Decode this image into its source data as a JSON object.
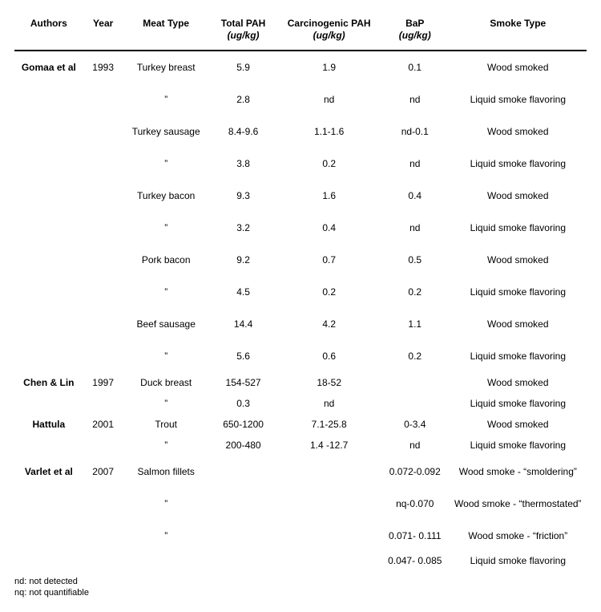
{
  "columns": {
    "authors": "Authors",
    "year": "Year",
    "meat": "Meat Type",
    "total": "Total PAH",
    "carc": "Carcinogenic PAH",
    "bap": "BaP",
    "smoke": "Smoke Type",
    "unit_total": "(ug/kg)",
    "unit_carc": "(ug/kg)",
    "unit_bap": "(ug/kg)"
  },
  "rows": [
    {
      "authors": "Gomaa et al",
      "year": "1993",
      "meat": "Turkey breast",
      "total": "5.9",
      "carc": "1.9",
      "bap": "0.1",
      "smoke": "Wood smoked",
      "cls": "loose"
    },
    {
      "authors": "",
      "year": "",
      "meat": "”",
      "total": "2.8",
      "carc": "nd",
      "bap": "nd",
      "smoke": "Liquid smoke flavoring",
      "cls": "loose"
    },
    {
      "authors": "",
      "year": "",
      "meat": "Turkey sausage",
      "total": "8.4-9.6",
      "carc": "1.1-1.6",
      "bap": "nd-0.1",
      "smoke": "Wood smoked",
      "cls": "loose"
    },
    {
      "authors": "",
      "year": "",
      "meat": "”",
      "total": "3.8",
      "carc": "0.2",
      "bap": "nd",
      "smoke": "Liquid smoke flavoring",
      "cls": "loose"
    },
    {
      "authors": "",
      "year": "",
      "meat": "Turkey bacon",
      "total": "9.3",
      "carc": "1.6",
      "bap": "0.4",
      "smoke": "Wood smoked",
      "cls": "loose"
    },
    {
      "authors": "",
      "year": "",
      "meat": "”",
      "total": "3.2",
      "carc": "0.4",
      "bap": "nd",
      "smoke": "Liquid smoke flavoring",
      "cls": "loose"
    },
    {
      "authors": "",
      "year": "",
      "meat": "Pork bacon",
      "total": "9.2",
      "carc": "0.7",
      "bap": "0.5",
      "smoke": "Wood smoked",
      "cls": "loose"
    },
    {
      "authors": "",
      "year": "",
      "meat": "”",
      "total": "4.5",
      "carc": "0.2",
      "bap": "0.2",
      "smoke": "Liquid smoke flavoring",
      "cls": "loose"
    },
    {
      "authors": "",
      "year": "",
      "meat": "Beef sausage",
      "total": "14.4",
      "carc": "4.2",
      "bap": "1.1",
      "smoke": "Wood smoked",
      "cls": "loose"
    },
    {
      "authors": "",
      "year": "",
      "meat": "”",
      "total": "5.6",
      "carc": "0.6",
      "bap": "0.2",
      "smoke": "Liquid smoke flavoring",
      "cls": "loose"
    },
    {
      "authors": "Chen & Lin",
      "year": "1997",
      "meat": "Duck breast",
      "total": "154-527",
      "carc": "18-52",
      "bap": "",
      "smoke": "Wood smoked",
      "cls": "tight"
    },
    {
      "authors": "",
      "year": "",
      "meat": "”",
      "total": "0.3",
      "carc": "nd",
      "bap": "",
      "smoke": "Liquid smoke flavoring",
      "cls": "tight"
    },
    {
      "authors": "Hattula",
      "year": "2001",
      "meat": "Trout",
      "total": "650-1200",
      "carc": "7.1-25.8",
      "bap": "0-3.4",
      "smoke": "Wood smoked",
      "cls": "tight"
    },
    {
      "authors": "",
      "year": "",
      "meat": "”",
      "total": "200-480",
      "carc": "1.4 -12.7",
      "bap": "nd",
      "smoke": "Liquid smoke flavoring",
      "cls": "tight"
    },
    {
      "authors": "Varlet et al",
      "year": "2007",
      "meat": "Salmon fillets",
      "total": "",
      "carc": "",
      "bap": "0.072-0.092",
      "smoke": "Wood smoke - “smoldering”",
      "cls": "loose"
    },
    {
      "authors": "",
      "year": "",
      "meat": "”",
      "total": "",
      "carc": "",
      "bap": "nq-0.070",
      "smoke": "Wood smoke - “thermostated”",
      "cls": "loose"
    },
    {
      "authors": "",
      "year": "",
      "meat": "”",
      "total": "",
      "carc": "",
      "bap": "0.071- 0.111",
      "smoke": "Wood smoke - “friction”",
      "cls": "loose"
    },
    {
      "authors": "",
      "year": "",
      "meat": "",
      "total": "",
      "carc": "",
      "bap": "0.047- 0.085",
      "smoke": "Liquid smoke flavoring",
      "cls": "tighter"
    }
  ],
  "footnotes": {
    "nd": "nd: not detected",
    "nq": "nq: not quantifiable"
  },
  "style": {
    "font_family": "Arial",
    "font_size_pt": 9,
    "header_border_color": "#000000",
    "background_color": "#ffffff",
    "text_color": "#000000"
  }
}
